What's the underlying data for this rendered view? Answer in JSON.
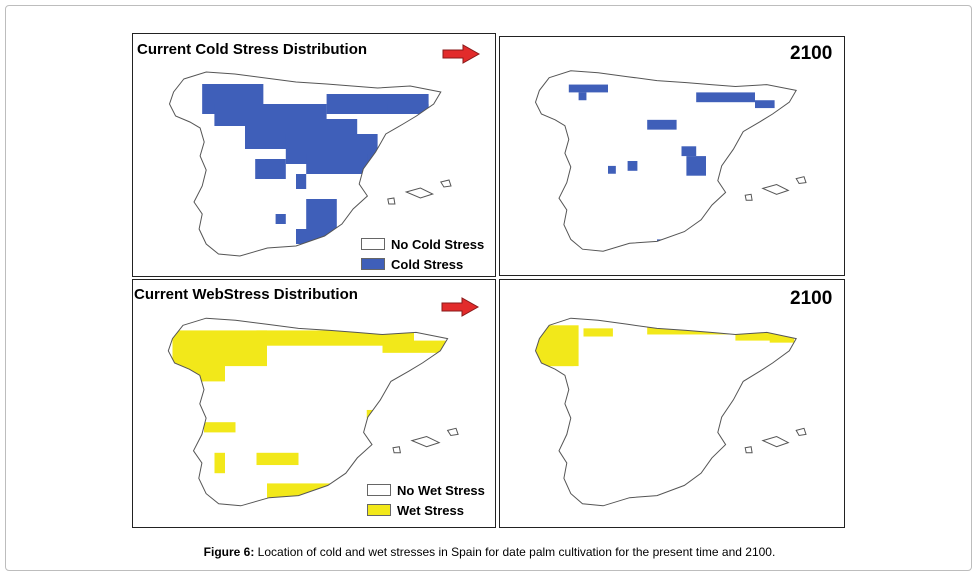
{
  "colors": {
    "cold": "#3f5fb9",
    "wet": "#f2e81a",
    "arrow": "#e22b2b",
    "outline": "#555555"
  },
  "panels": {
    "cold_current": {
      "title": "Current Cold Stress Distribution",
      "legend": [
        {
          "label": "No Cold Stress",
          "color": "#ffffff"
        },
        {
          "label": "Cold Stress",
          "color": "#3f5fb9"
        }
      ]
    },
    "cold_2100": {
      "year": "2100"
    },
    "wet_current": {
      "title": "Current WebStress Distribution",
      "legend": [
        {
          "label": "No Wet Stress",
          "color": "#ffffff"
        },
        {
          "label": "Wet Stress",
          "color": "#f2e81a"
        }
      ]
    },
    "wet_2100": {
      "year": "2100"
    }
  },
  "caption": {
    "label": "Figure 6:",
    "text": " Location of cold and wet stresses in Spain for date palm cultivation for the present time and 2100."
  }
}
